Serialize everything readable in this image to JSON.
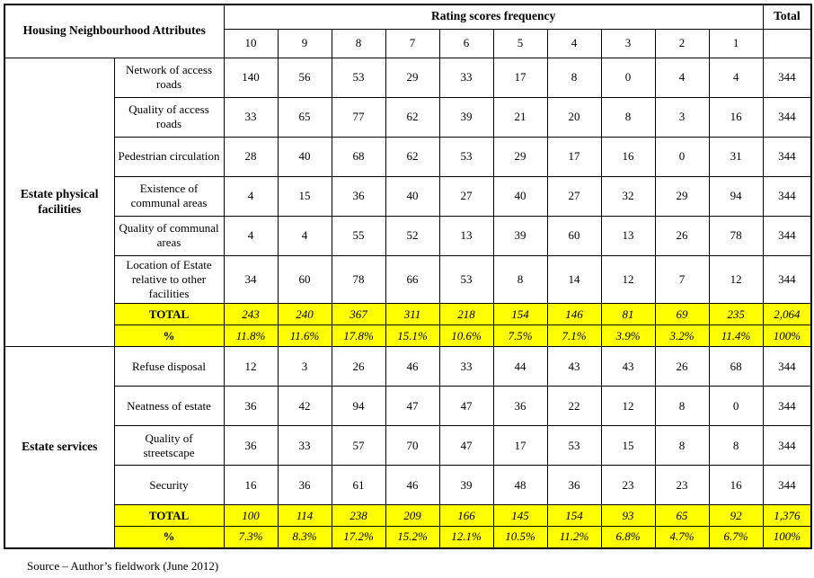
{
  "page": {
    "source_note": "Source – Author’s fieldwork (June 2012)"
  },
  "chart_data": {
    "type": "table",
    "header": {
      "attributes_label": "Housing Neighbourhood Attributes",
      "rating_label": "Rating scores frequency",
      "total_label": "Total",
      "rating_columns": [
        "10",
        "9",
        "8",
        "7",
        "6",
        "5",
        "4",
        "3",
        "2",
        "1"
      ]
    },
    "groups": [
      {
        "name": "Estate physical facilities",
        "rows": [
          {
            "label": "Network of access roads",
            "values": [
              "140",
              "56",
              "53",
              "29",
              "33",
              "17",
              "8",
              "0",
              "4",
              "4"
            ],
            "total": "344"
          },
          {
            "label": "Quality of access roads",
            "values": [
              "33",
              "65",
              "77",
              "62",
              "39",
              "21",
              "20",
              "8",
              "3",
              "16"
            ],
            "total": "344"
          },
          {
            "label": "Pedestrian circulation",
            "values": [
              "28",
              "40",
              "68",
              "62",
              "53",
              "29",
              "17",
              "16",
              "0",
              "31"
            ],
            "total": "344"
          },
          {
            "label": "Existence of communal areas",
            "values": [
              "4",
              "15",
              "36",
              "40",
              "27",
              "40",
              "27",
              "32",
              "29",
              "94"
            ],
            "total": "344"
          },
          {
            "label": "Quality of communal areas",
            "values": [
              "4",
              "4",
              "55",
              "52",
              "13",
              "39",
              "60",
              "13",
              "26",
              "78"
            ],
            "total": "344"
          },
          {
            "label": "Location of Estate relative to other facilities",
            "values": [
              "34",
              "60",
              "78",
              "66",
              "53",
              "8",
              "14",
              "12",
              "7",
              "12"
            ],
            "total": "344"
          }
        ],
        "total_row": {
          "label": "TOTAL",
          "values": [
            "243",
            "240",
            "367",
            "311",
            "218",
            "154",
            "146",
            "81",
            "69",
            "235"
          ],
          "total": "2,064"
        },
        "percent_row": {
          "label": "%",
          "values": [
            "11.8%",
            "11.6%",
            "17.8%",
            "15.1%",
            "10.6%",
            "7.5%",
            "7.1%",
            "3.9%",
            "3.2%",
            "11.4%"
          ],
          "total": "100%"
        }
      },
      {
        "name": "Estate services",
        "rows": [
          {
            "label": "Refuse disposal",
            "values": [
              "12",
              "3",
              "26",
              "46",
              "33",
              "44",
              "43",
              "43",
              "26",
              "68"
            ],
            "total": "344"
          },
          {
            "label": "Neatness of estate",
            "values": [
              "36",
              "42",
              "94",
              "47",
              "47",
              "36",
              "22",
              "12",
              "8",
              "0"
            ],
            "total": "344"
          },
          {
            "label": "Quality of streetscape",
            "values": [
              "36",
              "33",
              "57",
              "70",
              "47",
              "17",
              "53",
              "15",
              "8",
              "8"
            ],
            "total": "344"
          },
          {
            "label": "Security",
            "values": [
              "16",
              "36",
              "61",
              "46",
              "39",
              "48",
              "36",
              "23",
              "23",
              "16"
            ],
            "total": "344"
          }
        ],
        "total_row": {
          "label": "TOTAL",
          "values": [
            "100",
            "114",
            "238",
            "209",
            "166",
            "145",
            "154",
            "93",
            "65",
            "92"
          ],
          "total": "1,376"
        },
        "percent_row": {
          "label": "%",
          "values": [
            "7.3%",
            "8.3%",
            "17.2%",
            "15.2%",
            "12.1%",
            "10.5%",
            "11.2%",
            "6.8%",
            "4.7%",
            "6.7%"
          ],
          "total": "100%"
        }
      }
    ],
    "colors": {
      "highlight": "#ffff00",
      "border": "#000000",
      "background": "#ffffff"
    }
  }
}
